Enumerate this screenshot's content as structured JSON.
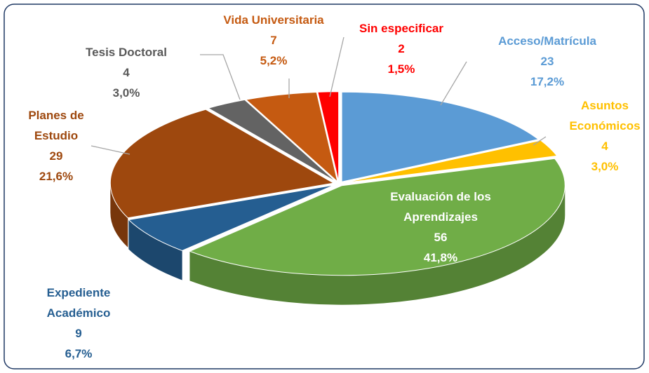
{
  "chart_data": {
    "type": "pie",
    "categories": [
      "Acceso/Matrícula",
      "Asuntos Económicos",
      "Evaluación de los Aprendizajes",
      "Expediente Académico",
      "Planes de Estudio",
      "Tesis Doctoral",
      "Vida Universitaria",
      "Sin especificar"
    ],
    "values": [
      23,
      4,
      56,
      9,
      29,
      4,
      7,
      2
    ],
    "percents": [
      17.2,
      3.0,
      41.8,
      6.7,
      21.6,
      3.0,
      5.2,
      1.5
    ],
    "percent_labels": [
      "17,2%",
      "3,0%",
      "41,8%",
      "6,7%",
      "21,6%",
      "3,0%",
      "5,2%",
      "1,5%"
    ],
    "colors": [
      "#5b9bd5",
      "#ffc000",
      "#70ad47",
      "#255e91",
      "#9e480e",
      "#636363",
      "#c55a11",
      "#ff0000"
    ]
  }
}
